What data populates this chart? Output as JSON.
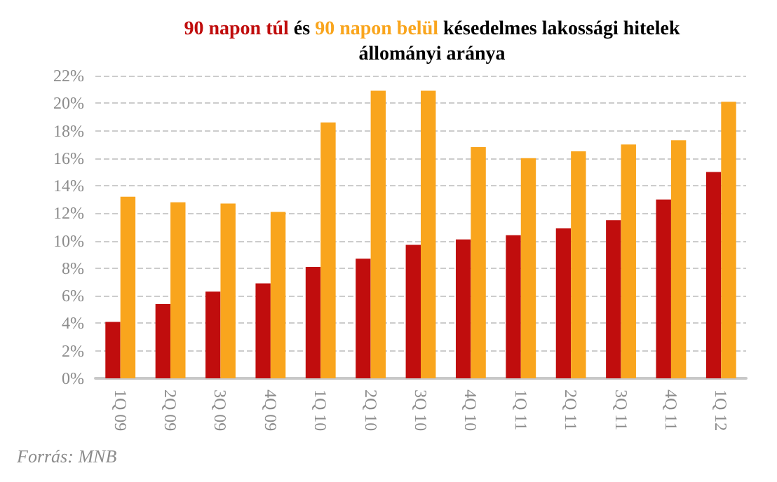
{
  "chart_data": {
    "type": "bar",
    "title": "késedelmes lakossági hitelek állományi aránya",
    "legend_title": "és",
    "categories": [
      "1Q 09",
      "2Q 09",
      "3Q 09",
      "4Q 09",
      "1Q 10",
      "2Q 10",
      "3Q 10",
      "4Q 10",
      "1Q 11",
      "2Q 11",
      "3Q 11",
      "4Q 11",
      "1Q 12"
    ],
    "series": [
      {
        "name": "90 napon túl",
        "color": "#c00d0d",
        "values": [
          4.1,
          5.4,
          6.3,
          6.9,
          8.1,
          8.7,
          9.7,
          10.1,
          10.4,
          10.9,
          11.5,
          13.0,
          15.0
        ]
      },
      {
        "name": "90 napon belül",
        "color": "#f9a51d",
        "values": [
          13.2,
          12.8,
          12.7,
          12.1,
          18.6,
          20.9,
          20.9,
          16.8,
          16.0,
          16.5,
          17.0,
          17.3,
          20.1
        ]
      }
    ],
    "ylim": [
      0,
      22
    ],
    "yticks": [
      {
        "value": 0,
        "label": "0%"
      },
      {
        "value": 2,
        "label": "2%"
      },
      {
        "value": 4,
        "label": "4%"
      },
      {
        "value": 6,
        "label": "6%"
      },
      {
        "value": 8,
        "label": "8%"
      },
      {
        "value": 10,
        "label": "10%"
      },
      {
        "value": 12,
        "label": "12%"
      },
      {
        "value": 14,
        "label": "14%"
      },
      {
        "value": 16,
        "label": "16%"
      },
      {
        "value": 18,
        "label": "18%"
      },
      {
        "value": 20,
        "label": "20%"
      },
      {
        "value": 22,
        "label": "22%"
      }
    ],
    "grid": "y",
    "legend": "top",
    "annotations": [
      "Forrás: MNB"
    ]
  }
}
